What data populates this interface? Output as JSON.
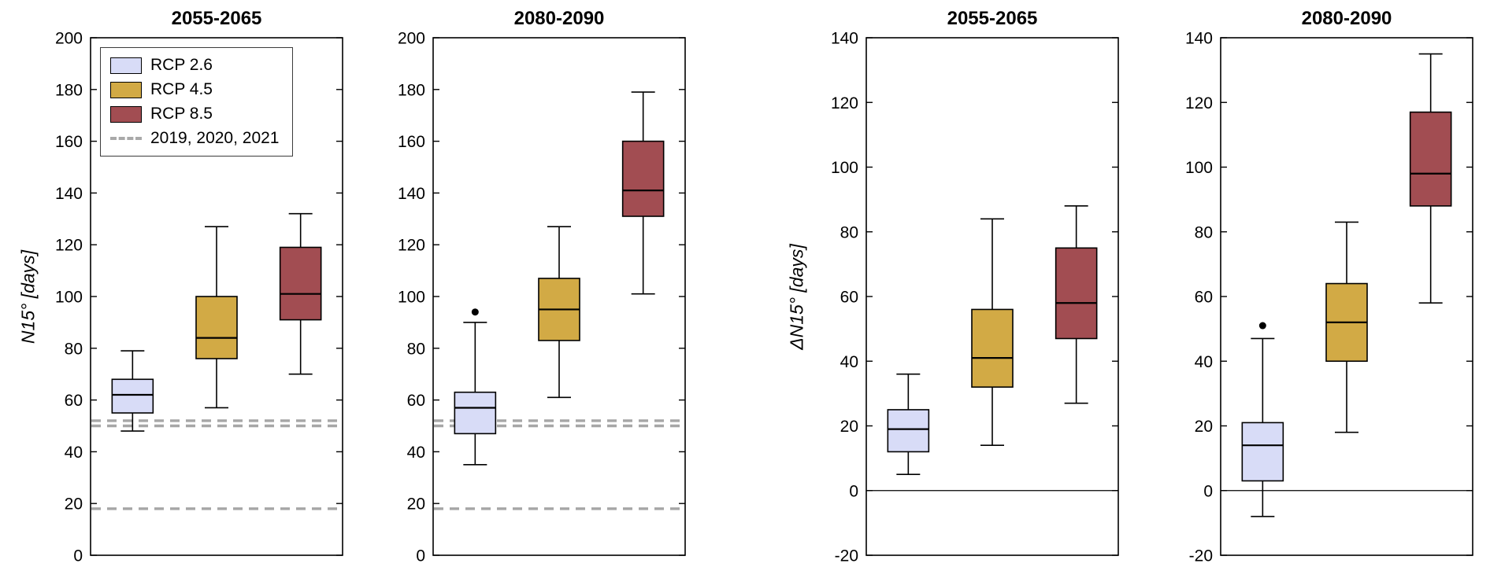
{
  "chart_data": {
    "type": "boxplot",
    "series": [
      {
        "name": "RCP 2.6",
        "color": "#d8dcf7"
      },
      {
        "name": "RCP 4.5",
        "color": "#d2aa45"
      },
      {
        "name": "RCP 8.5",
        "color": "#a24d52"
      }
    ],
    "legend": {
      "entries": [
        "RCP 2.6",
        "RCP 4.5",
        "RCP 8.5"
      ],
      "dashed_entry": "2019, 2020, 2021",
      "position": "top-left of first panel"
    },
    "reference_line_color": "#a6a6a6",
    "panels": [
      {
        "id": "n15-2055",
        "title": "2055-2065",
        "ylabel": "N15° [days]",
        "ylim": [
          0,
          200
        ],
        "yticks": [
          0,
          20,
          40,
          60,
          80,
          100,
          120,
          140,
          160,
          180,
          200
        ],
        "reference_lines": [
          52,
          50,
          18
        ],
        "zero_line": false,
        "show_legend": true,
        "boxes": [
          {
            "series": "RCP 2.6",
            "whisker_low": 48,
            "q1": 55,
            "median": 62,
            "q3": 68,
            "whisker_high": 79,
            "outliers": []
          },
          {
            "series": "RCP 4.5",
            "whisker_low": 57,
            "q1": 76,
            "median": 84,
            "q3": 100,
            "whisker_high": 127,
            "outliers": []
          },
          {
            "series": "RCP 8.5",
            "whisker_low": 70,
            "q1": 91,
            "median": 101,
            "q3": 119,
            "whisker_high": 132,
            "outliers": []
          }
        ]
      },
      {
        "id": "n15-2080",
        "title": "2080-2090",
        "ylabel": "",
        "ylim": [
          0,
          200
        ],
        "yticks": [
          0,
          20,
          40,
          60,
          80,
          100,
          120,
          140,
          160,
          180,
          200
        ],
        "reference_lines": [
          52,
          50,
          18
        ],
        "zero_line": false,
        "show_legend": false,
        "boxes": [
          {
            "series": "RCP 2.6",
            "whisker_low": 35,
            "q1": 47,
            "median": 57,
            "q3": 63,
            "whisker_high": 90,
            "outliers": [
              94
            ]
          },
          {
            "series": "RCP 4.5",
            "whisker_low": 61,
            "q1": 83,
            "median": 95,
            "q3": 107,
            "whisker_high": 127,
            "outliers": []
          },
          {
            "series": "RCP 8.5",
            "whisker_low": 101,
            "q1": 131,
            "median": 141,
            "q3": 160,
            "whisker_high": 179,
            "outliers": []
          }
        ]
      },
      {
        "id": "dn15-2055",
        "title": "2055-2065",
        "ylabel": "ΔN15° [days]",
        "ylim": [
          -20,
          140
        ],
        "yticks": [
          -20,
          0,
          20,
          40,
          60,
          80,
          100,
          120,
          140
        ],
        "reference_lines": [],
        "zero_line": true,
        "show_legend": false,
        "boxes": [
          {
            "series": "RCP 2.6",
            "whisker_low": 5,
            "q1": 12,
            "median": 19,
            "q3": 25,
            "whisker_high": 36,
            "outliers": []
          },
          {
            "series": "RCP 4.5",
            "whisker_low": 14,
            "q1": 32,
            "median": 41,
            "q3": 56,
            "whisker_high": 84,
            "outliers": []
          },
          {
            "series": "RCP 8.5",
            "whisker_low": 27,
            "q1": 47,
            "median": 58,
            "q3": 75,
            "whisker_high": 88,
            "outliers": []
          }
        ]
      },
      {
        "id": "dn15-2080",
        "title": "2080-2090",
        "ylabel": "",
        "ylim": [
          -20,
          140
        ],
        "yticks": [
          -20,
          0,
          20,
          40,
          60,
          80,
          100,
          120,
          140
        ],
        "reference_lines": [],
        "zero_line": true,
        "show_legend": false,
        "boxes": [
          {
            "series": "RCP 2.6",
            "whisker_low": -8,
            "q1": 3,
            "median": 14,
            "q3": 21,
            "whisker_high": 47,
            "outliers": [
              51
            ]
          },
          {
            "series": "RCP 4.5",
            "whisker_low": 18,
            "q1": 40,
            "median": 52,
            "q3": 64,
            "whisker_high": 83,
            "outliers": []
          },
          {
            "series": "RCP 8.5",
            "whisker_low": 58,
            "q1": 88,
            "median": 98,
            "q3": 117,
            "whisker_high": 135,
            "outliers": []
          }
        ]
      }
    ]
  }
}
